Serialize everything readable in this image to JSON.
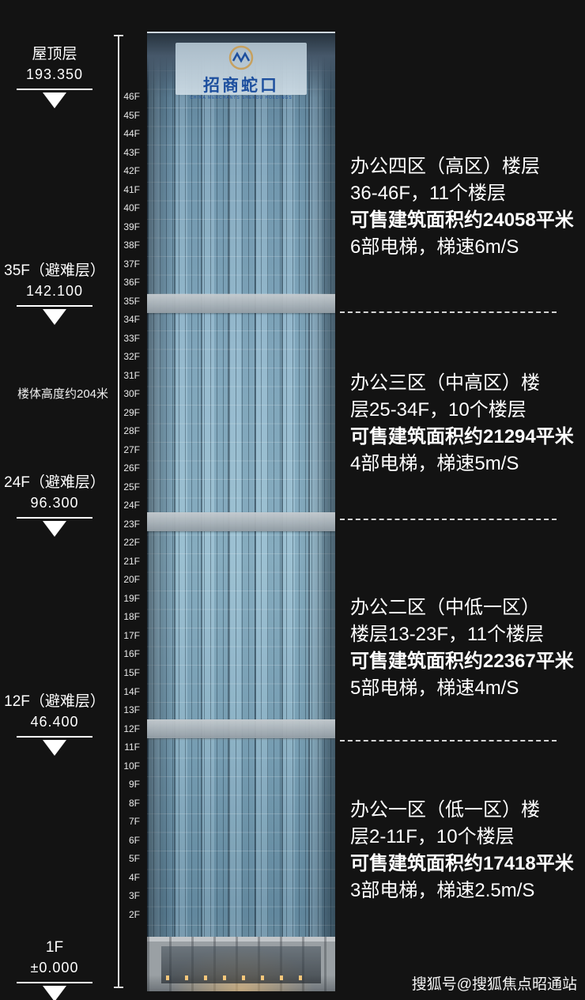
{
  "page": {
    "watermark": "搜狐号@搜狐焦点昭通站"
  },
  "logo": {
    "name": "招商蛇口",
    "subtext": "CHINA MERCHANTS SHEKOU HOLDINGS"
  },
  "ruler": {
    "height_note": "楼体高度约204米",
    "markers": [
      {
        "title": "屋顶层",
        "value": "193.350"
      },
      {
        "title": "35F（避难层）",
        "value": "142.100"
      },
      {
        "title": "24F（避难层）",
        "value": "96.300"
      },
      {
        "title": "12F（避难层）",
        "value": "46.400"
      },
      {
        "title": "1F",
        "value": "±0.000"
      }
    ]
  },
  "floors": [
    "46F",
    "45F",
    "44F",
    "43F",
    "42F",
    "41F",
    "40F",
    "39F",
    "38F",
    "37F",
    "36F",
    "35F",
    "34F",
    "33F",
    "32F",
    "31F",
    "30F",
    "29F",
    "28F",
    "27F",
    "26F",
    "25F",
    "24F",
    "23F",
    "22F",
    "21F",
    "20F",
    "19F",
    "18F",
    "17F",
    "16F",
    "15F",
    "14F",
    "13F",
    "12F",
    "11F",
    "10F",
    "9F",
    "8F",
    "7F",
    "6F",
    "5F",
    "4F",
    "3F",
    "2F"
  ],
  "zones": [
    {
      "line1": "办公四区（高区）楼层",
      "line2": "36-46F，11个楼层",
      "line3": "可售建筑面积约24058平米",
      "line4": "6部电梯，梯速6m/S"
    },
    {
      "line1": "办公三区（中高区）楼",
      "line2": "层25-34F，10个楼层",
      "line3": "可售建筑面积约21294平米",
      "line4": "4部电梯，梯速5m/S"
    },
    {
      "line1": "办公二区（中低一区）",
      "line2": "楼层13-23F，11个楼层",
      "line3": "可售建筑面积约22367平米",
      "line4": "5部电梯，梯速4m/S"
    },
    {
      "line1": "办公一区（低一区）楼",
      "line2": "层2-11F，10个楼层",
      "line3": "可售建筑面积约17418平米",
      "line4": "3部电梯，梯速2.5m/S"
    }
  ]
}
